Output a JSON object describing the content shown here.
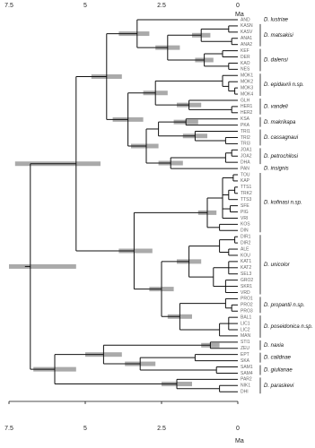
{
  "axis": {
    "ticks": [
      7.5,
      5,
      2.5,
      0
    ],
    "unit": "Ma"
  },
  "tree": {
    "age": 6.8,
    "hpd": [
      5.3,
      7.5
    ],
    "children": [
      {
        "age": 5.3,
        "hpd": [
          4.5,
          7.3
        ],
        "children": [
          {
            "age": 4.3,
            "hpd": [
              3.8,
              4.8
            ],
            "children": [
              {
                "age": 3.3,
                "hpd": [
                  2.9,
                  3.9
                ],
                "children": [
                  {
                    "label": "AND",
                    "clade": "D. lustriae"
                  },
                  {
                    "age": 2.3,
                    "hpd": [
                      1.9,
                      2.7
                    ],
                    "children": [
                      {
                        "age": 1.2,
                        "hpd": [
                          0.9,
                          1.5
                        ],
                        "clade": "D. matsakisi",
                        "children": [
                          {
                            "age": 0.3,
                            "children": [
                              {
                                "label": "KASN"
                              },
                              {
                                "label": "KASV"
                              }
                            ]
                          },
                          {
                            "age": 0.2,
                            "children": [
                              {
                                "label": "ANA1"
                              },
                              {
                                "label": "ANA2"
                              }
                            ]
                          }
                        ]
                      },
                      {
                        "age": 1.1,
                        "hpd": [
                          0.8,
                          1.4
                        ],
                        "clade": "D. dalensi",
                        "children": [
                          {
                            "age": 0.5,
                            "children": [
                              {
                                "label": "KEF"
                              },
                              {
                                "label": "DER"
                              }
                            ]
                          },
                          {
                            "age": 0.3,
                            "children": [
                              {
                                "label": "KAO"
                              },
                              {
                                "label": "NES"
                              }
                            ]
                          }
                        ]
                      }
                    ]
                  }
                ]
              },
              {
                "age": 3.6,
                "hpd": [
                  3.1,
                  4.1
                ],
                "children": [
                  {
                    "age": 2.7,
                    "hpd": [
                      2.3,
                      3.1
                    ],
                    "children": [
                      {
                        "age": 0.5,
                        "clade": "D. epidavrii n.sp.",
                        "children": [
                          {
                            "label": "MOK1"
                          },
                          {
                            "age": 0.3,
                            "children": [
                              {
                                "label": "MOK2"
                              },
                              {
                                "age": 0.1,
                                "children": [
                                  {
                                    "label": "MOK3"
                                  },
                                  {
                                    "label": "MOK4"
                                  }
                                ]
                              }
                            ]
                          }
                        ]
                      },
                      {
                        "age": 1.6,
                        "hpd": [
                          1.2,
                          2.0
                        ],
                        "clade": "D. vandeli",
                        "children": [
                          {
                            "label": "GLH"
                          },
                          {
                            "age": 0.2,
                            "children": [
                              {
                                "label": "HER1"
                              },
                              {
                                "label": "HER2"
                              }
                            ]
                          }
                        ]
                      }
                    ]
                  },
                  {
                    "age": 3.0,
                    "hpd": [
                      2.6,
                      3.5
                    ],
                    "children": [
                      {
                        "age": 2.6,
                        "children": [
                          {
                            "age": 1.7,
                            "hpd": [
                              1.3,
                              2.1
                            ],
                            "clade": "D. makrikapa",
                            "children": [
                              {
                                "label": "KSA"
                              },
                              {
                                "label": "PKA"
                              }
                            ]
                          },
                          {
                            "age": 1.4,
                            "hpd": [
                              1.0,
                              1.8
                            ],
                            "clade": "D. cassagnaui",
                            "children": [
                              {
                                "label": "TRI1"
                              },
                              {
                                "age": 0.4,
                                "children": [
                                  {
                                    "label": "TRI2"
                                  },
                                  {
                                    "label": "TRI3"
                                  }
                                ]
                              }
                            ]
                          }
                        ]
                      },
                      {
                        "age": 2.2,
                        "hpd": [
                          1.8,
                          2.6
                        ],
                        "children": [
                          {
                            "age": 0.4,
                            "clade": "D. petrochilosi",
                            "children": [
                              {
                                "age": 0.2,
                                "children": [
                                  {
                                    "label": "JOA1"
                                  },
                                  {
                                    "label": "JOA2"
                                  }
                                ]
                              },
                              {
                                "label": "DHA"
                              }
                            ]
                          },
                          {
                            "label": "PAN",
                            "clade": "D. insignis"
                          }
                        ]
                      }
                    ]
                  }
                ]
              }
            ]
          },
          {
            "age": 3.4,
            "hpd": [
              2.8,
              3.9
            ],
            "children": [
              {
                "age": 1.0,
                "hpd": [
                  0.7,
                  1.3
                ],
                "clade": "D. kofinasi n.sp.",
                "children": [
                  {
                    "age": 0.5,
                    "children": [
                      {
                        "age": 0.15,
                        "children": [
                          {
                            "label": "TOU"
                          },
                          {
                            "label": "KAP"
                          }
                        ]
                      },
                      {
                        "age": 0.3,
                        "children": [
                          {
                            "age": 0.1,
                            "children": [
                              {
                                "label": "TTS1"
                              },
                              {
                                "label": "TRK2"
                              }
                            ]
                          },
                          {
                            "label": "TTS3"
                          }
                        ]
                      },
                      {
                        "age": 0.25,
                        "children": [
                          {
                            "label": "SFE"
                          },
                          {
                            "label": "PIG"
                          }
                        ]
                      },
                      {
                        "label": "VRI"
                      }
                    ]
                  },
                  {
                    "age": 0.6,
                    "children": [
                      {
                        "label": "KOS"
                      },
                      {
                        "label": "DIN"
                      }
                    ]
                  }
                ]
              },
              {
                "age": 2.5,
                "hpd": [
                  2.1,
                  2.9
                ],
                "children": [
                  {
                    "age": 1.6,
                    "hpd": [
                      1.2,
                      2.0
                    ],
                    "clade": "D. unicolor",
                    "children": [
                      {
                        "age": 0.6,
                        "children": [
                          {
                            "age": 0.1,
                            "children": [
                              {
                                "label": "DIR1"
                              },
                              {
                                "label": "DIR2"
                              }
                            ]
                          },
                          {
                            "age": 0.3,
                            "children": [
                              {
                                "label": "ALE"
                              },
                              {
                                "label": "KOU"
                              }
                            ]
                          }
                        ]
                      },
                      {
                        "age": 0.8,
                        "children": [
                          {
                            "age": 0.3,
                            "children": [
                              {
                                "label": "KAT1"
                              },
                              {
                                "label": "KAT2"
                              },
                              {
                                "label": "SEL3"
                              }
                            ]
                          },
                          {
                            "age": 0.4,
                            "children": [
                              {
                                "label": "GRO2"
                              },
                              {
                                "label": "SKR1"
                              },
                              {
                                "label": "VRD"
                              }
                            ]
                          }
                        ]
                      }
                    ]
                  },
                  {
                    "age": 1.9,
                    "hpd": [
                      1.5,
                      2.3
                    ],
                    "children": [
                      {
                        "age": 0.4,
                        "clade": "D. propantii n.sp.",
                        "children": [
                          {
                            "label": "PRO1"
                          },
                          {
                            "age": 0.2,
                            "children": [
                              {
                                "label": "PRO2"
                              },
                              {
                                "label": "PRO3"
                              }
                            ]
                          }
                        ]
                      },
                      {
                        "age": 0.6,
                        "clade": "D. poseidonica n.sp.",
                        "children": [
                          {
                            "age": 0.3,
                            "children": [
                              {
                                "label": "BAL1"
                              },
                              {
                                "label": "LIC1"
                              },
                              {
                                "label": "LIC2"
                              }
                            ]
                          },
                          {
                            "label": "MAN"
                          }
                        ]
                      }
                    ]
                  }
                ]
              }
            ]
          }
        ]
      },
      {
        "age": 6.0,
        "hpd": [
          5.3,
          6.7
        ],
        "children": [
          {
            "age": 4.4,
            "hpd": [
              3.8,
              5.0
            ],
            "children": [
              {
                "age": 0.9,
                "hpd": [
                  0.6,
                  1.2
                ],
                "clade": "D. naxia",
                "children": [
                  {
                    "label": "STI1"
                  },
                  {
                    "label": "ZEU"
                  }
                ]
              },
              {
                "age": 3.2,
                "hpd": [
                  2.7,
                  3.7
                ],
                "children": [
                  {
                    "age": 1.4,
                    "clade": "D. calidnae",
                    "children": [
                      {
                        "label": "EPT"
                      },
                      {
                        "label": "SKA"
                      }
                    ]
                  },
                  {
                    "age": 0.7,
                    "clade": "D. giulianae",
                    "children": [
                      {
                        "label": "SAM1"
                      },
                      {
                        "label": "SAM4"
                      }
                    ]
                  }
                ]
              }
            ]
          },
          {
            "age": 2.0,
            "hpd": [
              1.5,
              2.5
            ],
            "clade": "D. paraskevi",
            "children": [
              {
                "label": "PAR2"
              },
              {
                "age": 0.6,
                "children": [
                  {
                    "label": "NIK1"
                  },
                  {
                    "label": "DHI"
                  }
                ]
              }
            ]
          }
        ]
      }
    ]
  }
}
